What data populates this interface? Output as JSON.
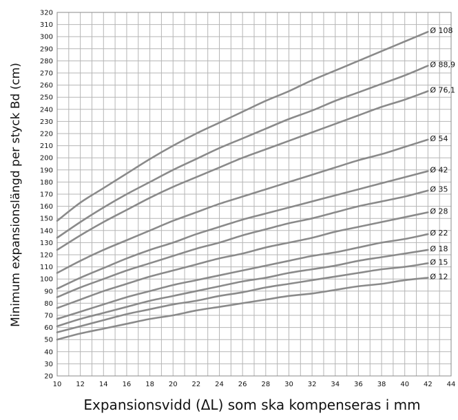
{
  "chart_data": {
    "type": "line",
    "title": "",
    "xlabel": "Expansionsvidd (ΔL) som ska kompenseras i mm",
    "ylabel": "Minimum expansionslängd per styck Bd (cm)",
    "xlim": [
      10,
      44
    ],
    "ylim": [
      20,
      320
    ],
    "x_ticks": [
      10,
      12,
      14,
      16,
      18,
      20,
      22,
      24,
      26,
      28,
      30,
      32,
      34,
      36,
      38,
      40,
      42,
      44
    ],
    "y_ticks": [
      20,
      30,
      40,
      50,
      60,
      70,
      80,
      90,
      100,
      110,
      120,
      130,
      140,
      150,
      160,
      170,
      180,
      190,
      200,
      210,
      220,
      230,
      240,
      250,
      260,
      270,
      280,
      290,
      300,
      310,
      320
    ],
    "grid": true,
    "legend": "none",
    "line_color": "#8a8a8a",
    "x": [
      10,
      12,
      14,
      16,
      18,
      20,
      22,
      24,
      26,
      28,
      30,
      32,
      34,
      36,
      38,
      40,
      42
    ],
    "series": [
      {
        "name": "Ø 108",
        "values": [
          148,
          163,
          175,
          187,
          199,
          210,
          220,
          229,
          238,
          247,
          255,
          264,
          272,
          280,
          288,
          296,
          304
        ]
      },
      {
        "name": "Ø 88,9",
        "values": [
          134,
          147,
          159,
          170,
          180,
          190,
          199,
          208,
          216,
          224,
          232,
          239,
          247,
          254,
          261,
          268,
          276
        ]
      },
      {
        "name": "Ø 76,1",
        "values": [
          124,
          136,
          147,
          157,
          167,
          176,
          184,
          192,
          200,
          207,
          214,
          221,
          228,
          235,
          242,
          248,
          255
        ]
      },
      {
        "name": "Ø 54",
        "values": [
          105,
          115,
          124,
          132,
          140,
          148,
          155,
          162,
          168,
          174,
          180,
          186,
          192,
          198,
          203,
          209,
          215
        ]
      },
      {
        "name": "Ø 42",
        "values": [
          92,
          101,
          109,
          117,
          124,
          130,
          137,
          143,
          149,
          154,
          159,
          164,
          169,
          174,
          179,
          184,
          189
        ]
      },
      {
        "name": "Ø 35",
        "values": [
          85,
          93,
          100,
          107,
          113,
          119,
          125,
          130,
          136,
          141,
          146,
          150,
          155,
          160,
          164,
          168,
          173
        ]
      },
      {
        "name": "Ø 28",
        "values": [
          76,
          83,
          90,
          96,
          102,
          107,
          112,
          117,
          121,
          126,
          130,
          134,
          139,
          143,
          147,
          151,
          155
        ]
      },
      {
        "name": "Ø 22",
        "values": [
          67,
          73,
          79,
          85,
          90,
          95,
          99,
          103,
          107,
          111,
          115,
          119,
          122,
          126,
          130,
          133,
          137
        ]
      },
      {
        "name": "Ø 18",
        "values": [
          61,
          67,
          72,
          77,
          82,
          86,
          90,
          94,
          98,
          101,
          105,
          108,
          111,
          115,
          118,
          121,
          124
        ]
      },
      {
        "name": "Ø 15",
        "values": [
          56,
          61,
          66,
          71,
          75,
          79,
          82,
          86,
          89,
          93,
          96,
          99,
          102,
          105,
          108,
          110,
          113
        ]
      },
      {
        "name": "Ø 12",
        "values": [
          50,
          55,
          59,
          63,
          67,
          70,
          74,
          77,
          80,
          83,
          86,
          88,
          91,
          94,
          96,
          99,
          101
        ]
      }
    ]
  }
}
